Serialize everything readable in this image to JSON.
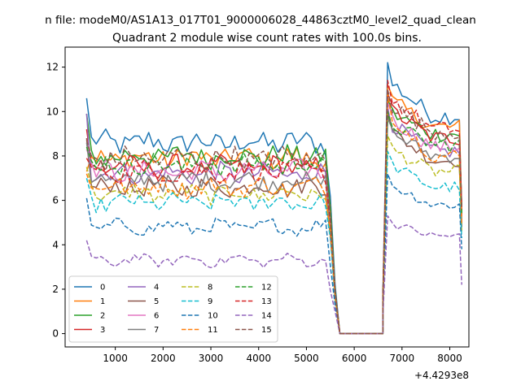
{
  "figure": {
    "suptitle": "n file: modeM0/AS1A13_017T01_9000006028_44863cztM0_level2_quad_clean",
    "title": "Quadrant 2 module wise count rates with 100.0s bins."
  },
  "chart_data": {
    "type": "line",
    "title": "Quadrant 2 module wise count rates with 100.0s bins.",
    "xlabel": "",
    "ylabel": "",
    "x_offset_label": "+4.4293e8",
    "xlim": [
      -50,
      8400
    ],
    "ylim": [
      -0.6,
      12.9
    ],
    "xticks": [
      1000,
      2000,
      3000,
      4000,
      5000,
      6000,
      7000,
      8000
    ],
    "yticks": [
      0,
      2,
      4,
      6,
      8,
      10,
      12
    ],
    "legend": {
      "position": "lower-left",
      "columns": 4
    },
    "gap": [
      5700,
      6600
    ],
    "segment1_x": [
      400,
      500,
      600,
      700,
      800,
      900,
      1000,
      1100,
      1200,
      1300,
      1400,
      1500,
      1600,
      1700,
      1800,
      1900,
      2000,
      2100,
      2200,
      2300,
      2400,
      2500,
      2600,
      2700,
      2800,
      2900,
      3000,
      3100,
      3200,
      3300,
      3400,
      3500,
      3600,
      3700,
      3800,
      3900,
      4000,
      4100,
      4200,
      4300,
      4400,
      4500,
      4600,
      4700,
      4800,
      4900,
      5000,
      5100,
      5200,
      5300,
      5400,
      5500,
      5600
    ],
    "segment2_x": [
      6600,
      6700,
      6800,
      6900,
      7000,
      7100,
      7200,
      7300,
      7400,
      7500,
      7600,
      7700,
      7800,
      7900,
      8000,
      8100,
      8200,
      8250
    ],
    "series": [
      {
        "name": "0",
        "color": "#1f77b4",
        "dash": "solid",
        "level1": 8.6,
        "level2": 9.8,
        "first": 10.6,
        "peak": 12.2,
        "end": 5.0,
        "low": 2.2
      },
      {
        "name": "1",
        "color": "#ff7f0e",
        "dash": "solid",
        "level1": 7.9,
        "level2": 9.3,
        "first": 7.3,
        "peak": 11.2,
        "end": 5.5,
        "low": 1.9
      },
      {
        "name": "2",
        "color": "#2ca02c",
        "dash": "solid",
        "level1": 8.0,
        "level2": 9.0,
        "first": 9.9,
        "peak": 10.5,
        "end": 5.8,
        "low": 2.0
      },
      {
        "name": "3",
        "color": "#d62728",
        "dash": "solid",
        "level1": 7.5,
        "level2": 8.8,
        "first": 9.2,
        "peak": 10.8,
        "end": 5.3,
        "low": 1.9
      },
      {
        "name": "4",
        "color": "#9467bd",
        "dash": "solid",
        "level1": 7.2,
        "level2": 8.2,
        "first": 9.9,
        "peak": 10.2,
        "end": 5.0,
        "low": 1.8
      },
      {
        "name": "5",
        "color": "#8c564b",
        "dash": "solid",
        "level1": 6.6,
        "level2": 7.8,
        "first": 8.8,
        "peak": 9.9,
        "end": 4.8,
        "low": 1.7
      },
      {
        "name": "6",
        "color": "#e377c2",
        "dash": "solid",
        "level1": 7.3,
        "level2": 8.4,
        "first": 8.3,
        "peak": 10.4,
        "end": 5.1,
        "low": 1.8
      },
      {
        "name": "7",
        "color": "#7f7f7f",
        "dash": "solid",
        "level1": 6.9,
        "level2": 8.0,
        "first": 8.6,
        "peak": 9.7,
        "end": 4.9,
        "low": 1.7
      },
      {
        "name": "8",
        "color": "#bcbd22",
        "dash": "dashed",
        "level1": 6.3,
        "level2": 7.3,
        "first": 7.5,
        "peak": 8.9,
        "end": 4.6,
        "low": 1.6
      },
      {
        "name": "9",
        "color": "#17becf",
        "dash": "dashed",
        "level1": 5.9,
        "level2": 6.6,
        "first": 7.0,
        "peak": 8.2,
        "end": 4.3,
        "low": 1.5
      },
      {
        "name": "10",
        "color": "#1f77b4",
        "dash": "dashed",
        "level1": 4.8,
        "level2": 5.8,
        "first": 6.1,
        "peak": 7.2,
        "end": 3.8,
        "low": 1.3
      },
      {
        "name": "11",
        "color": "#ff7f0e",
        "dash": "dashed",
        "level1": 6.6,
        "level2": 8.0,
        "first": 7.2,
        "peak": 10.9,
        "end": 5.0,
        "low": 1.7
      },
      {
        "name": "12",
        "color": "#2ca02c",
        "dash": "dashed",
        "level1": 7.6,
        "level2": 8.5,
        "first": 8.4,
        "peak": 10.0,
        "end": 5.4,
        "low": 1.9
      },
      {
        "name": "13",
        "color": "#d62728",
        "dash": "dashed",
        "level1": 7.3,
        "level2": 9.2,
        "first": 7.9,
        "peak": 11.4,
        "end": 5.7,
        "low": 1.9
      },
      {
        "name": "14",
        "color": "#9467bd",
        "dash": "dashed",
        "level1": 3.3,
        "level2": 4.4,
        "first": 4.2,
        "peak": 5.3,
        "end": 2.2,
        "low": 1.0
      },
      {
        "name": "15",
        "color": "#8c564b",
        "dash": "dashed",
        "level1": 7.9,
        "level2": 9.1,
        "first": 8.7,
        "peak": 11.0,
        "end": 5.6,
        "low": 1.9
      }
    ]
  }
}
